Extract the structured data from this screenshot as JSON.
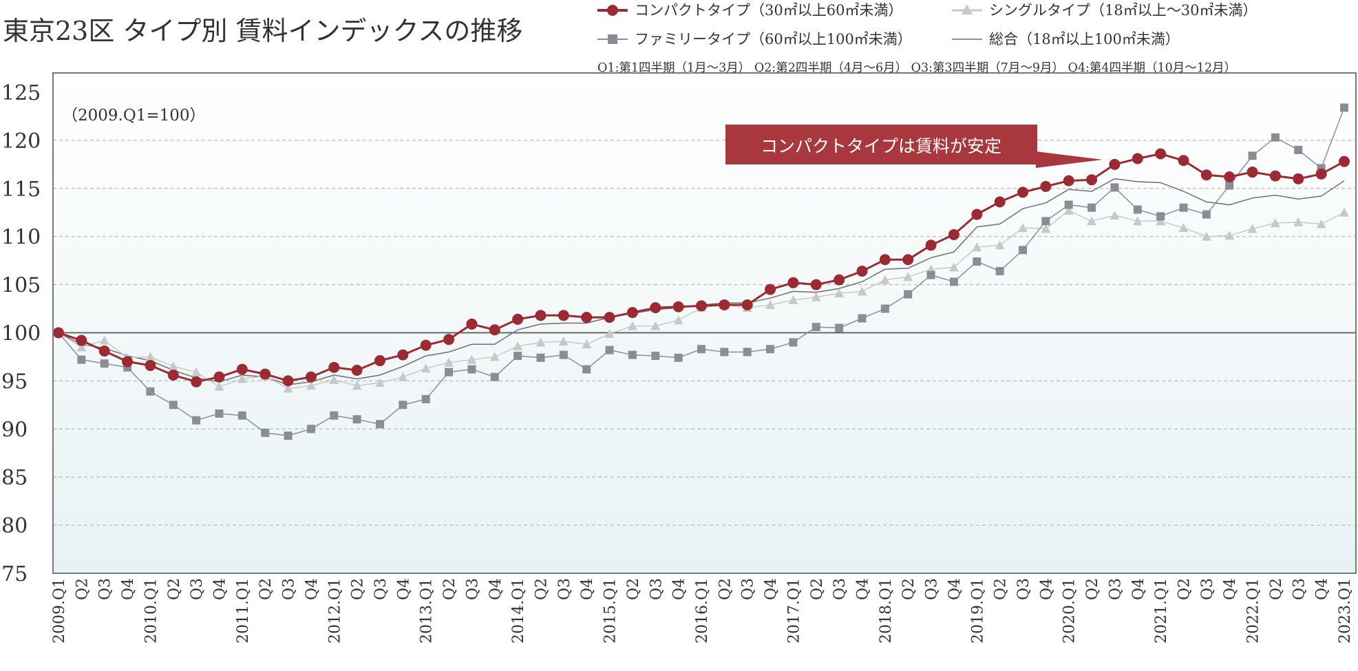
{
  "title": "東京23区 タイプ別 賃料インデックスの推移",
  "legend": {
    "compact": "コンパクトタイプ（30㎡以上60㎡未満）",
    "single": "シングルタイプ（18㎡以上～30㎡未満）",
    "family": "ファミリータイプ（60㎡以上100㎡未満）",
    "total": "総合（18㎡以上100㎡未満）"
  },
  "quarter_note": "Q1:第1四半期（1月～3月） Q2:第2四半期（4月～6月） Q3:第3四半期（7月～9月） Q4:第4四半期（10月～12月）",
  "base_note": "（2009.Q1=100）",
  "callout": "コンパクトタイプは賃料が安定",
  "colors": {
    "compact": "#9b2a32",
    "single": "#c8c8c8",
    "family": "#8a8d96",
    "total": "#6e6e6e",
    "callout_bg": "#a8383d",
    "grid": "#aaaaaa",
    "frame": "#777777"
  },
  "chart_data": {
    "type": "line",
    "title": "東京23区 タイプ別 賃料インデックスの推移",
    "ylim": [
      75,
      125
    ],
    "yticks": [
      75,
      80,
      85,
      90,
      95,
      100,
      105,
      110,
      115,
      120,
      125
    ],
    "categories": [
      "2009.Q1",
      "Q2",
      "Q3",
      "Q4",
      "2010.Q1",
      "Q2",
      "Q3",
      "Q4",
      "2011.Q1",
      "Q2",
      "Q3",
      "Q4",
      "2012.Q1",
      "Q2",
      "Q3",
      "Q4",
      "2013.Q1",
      "Q2",
      "Q3",
      "Q4",
      "2014.Q1",
      "Q2",
      "Q3",
      "Q4",
      "2015.Q1",
      "Q2",
      "Q3",
      "Q4",
      "2016.Q1",
      "Q2",
      "Q3",
      "Q4",
      "2017.Q1",
      "Q2",
      "Q3",
      "Q4",
      "2018.Q1",
      "Q2",
      "Q3",
      "Q4",
      "2019.Q1",
      "Q2",
      "Q3",
      "Q4",
      "2020.Q1",
      "Q2",
      "Q3",
      "Q4",
      "2021.Q1",
      "Q2",
      "Q3",
      "Q4",
      "2022.Q1",
      "Q2",
      "Q3",
      "Q4",
      "2023.Q1"
    ],
    "grid": true,
    "legend_position": "top-right",
    "series": [
      {
        "name": "コンパクトタイプ（30㎡以上60㎡未満）",
        "key": "compact",
        "marker": "circle",
        "values": [
          100,
          99.2,
          98.1,
          97.0,
          96.6,
          95.6,
          94.9,
          95.4,
          96.2,
          95.7,
          95.0,
          95.4,
          96.4,
          96.1,
          97.1,
          97.7,
          98.7,
          99.3,
          100.9,
          100.3,
          101.4,
          101.8,
          101.8,
          101.6,
          101.6,
          102.1,
          102.6,
          102.7,
          102.8,
          102.9,
          102.9,
          104.5,
          105.2,
          105.0,
          105.5,
          106.4,
          107.6,
          107.6,
          109.1,
          110.2,
          112.3,
          113.6,
          114.6,
          115.2,
          115.8,
          115.9,
          117.5,
          118.1,
          118.6,
          117.9,
          116.4,
          116.2,
          116.7,
          116.3,
          116.0,
          116.5,
          117.8
        ]
      },
      {
        "name": "シングルタイプ（18㎡以上～30㎡未満）",
        "key": "single",
        "marker": "triangle",
        "values": [
          100,
          98.5,
          99.2,
          97.4,
          97.5,
          96.5,
          95.9,
          94.4,
          95.2,
          95.5,
          94.2,
          94.5,
          95.1,
          94.5,
          94.8,
          95.4,
          96.3,
          96.9,
          97.2,
          97.5,
          98.6,
          99.0,
          99.1,
          98.8,
          99.9,
          100.7,
          100.7,
          101.3,
          102.6,
          102.9,
          102.6,
          102.9,
          103.4,
          103.7,
          104.1,
          104.3,
          105.5,
          105.8,
          106.6,
          106.8,
          108.9,
          109.1,
          110.9,
          110.8,
          112.7,
          111.6,
          112.2,
          111.6,
          111.6,
          110.9,
          110.0,
          110.1,
          110.8,
          111.4,
          111.5,
          111.3,
          112.5
        ]
      },
      {
        "name": "ファミリータイプ（60㎡以上100㎡未満）",
        "key": "family",
        "marker": "square",
        "values": [
          100,
          97.2,
          96.8,
          96.4,
          93.9,
          92.5,
          90.9,
          91.6,
          91.4,
          89.6,
          89.3,
          90.0,
          91.4,
          91.0,
          90.5,
          92.5,
          93.1,
          95.9,
          96.2,
          95.4,
          97.6,
          97.4,
          97.7,
          96.2,
          98.2,
          97.7,
          97.6,
          97.4,
          98.3,
          98.0,
          98.0,
          98.3,
          99.0,
          100.6,
          100.5,
          101.5,
          102.5,
          104.0,
          106.0,
          105.3,
          107.4,
          106.4,
          108.6,
          111.6,
          113.3,
          113.0,
          115.1,
          112.8,
          112.1,
          113.0,
          112.3,
          115.3,
          118.4,
          120.3,
          119.0,
          117.1,
          123.4
        ]
      },
      {
        "name": "総合（18㎡以上100㎡未満）",
        "key": "total",
        "marker": "none",
        "values": [
          100,
          98.8,
          98.4,
          97.6,
          97.1,
          96.1,
          95.3,
          94.9,
          95.6,
          95.4,
          94.6,
          94.9,
          95.6,
          95.2,
          95.6,
          96.5,
          97.6,
          98.0,
          98.8,
          98.8,
          100.3,
          100.9,
          101.0,
          101.0,
          101.6,
          102.0,
          102.4,
          102.6,
          102.9,
          103.1,
          103.1,
          103.6,
          104.3,
          104.2,
          104.6,
          105.3,
          106.6,
          106.7,
          107.8,
          108.4,
          111.0,
          111.3,
          112.9,
          113.5,
          114.9,
          114.7,
          116.0,
          115.7,
          115.6,
          114.7,
          113.6,
          113.3,
          114.0,
          114.3,
          113.9,
          114.2,
          115.8
        ]
      }
    ]
  }
}
